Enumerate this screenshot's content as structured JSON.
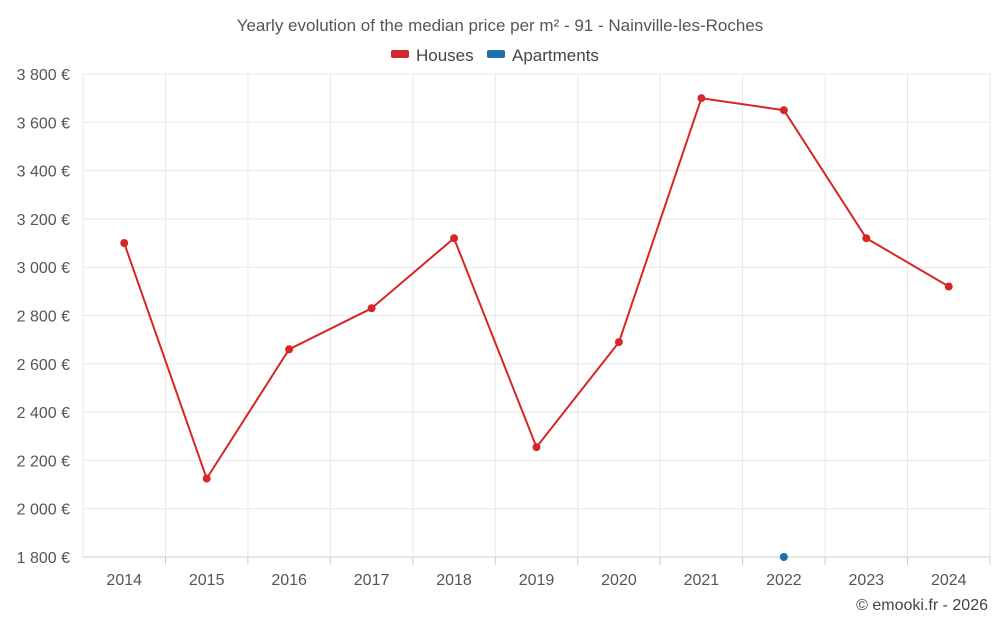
{
  "chart_data": {
    "type": "line",
    "title": "Yearly evolution of the median price per m² - 91 - Nainville-les-Roches",
    "xlabel": "",
    "ylabel": "",
    "categories": [
      "2014",
      "2015",
      "2016",
      "2017",
      "2018",
      "2019",
      "2020",
      "2021",
      "2022",
      "2023",
      "2024"
    ],
    "ylim": [
      1800,
      3800
    ],
    "yticks": [
      1800,
      2000,
      2200,
      2400,
      2600,
      2800,
      3000,
      3200,
      3400,
      3600,
      3800
    ],
    "ytick_labels": [
      "1 800 €",
      "2 000 €",
      "2 200 €",
      "2 400 €",
      "2 600 €",
      "2 800 €",
      "3 000 €",
      "3 200 €",
      "3 400 €",
      "3 600 €",
      "3 800 €"
    ],
    "grid": true,
    "legend_position": "top-center",
    "series": [
      {
        "name": "Houses",
        "color": "#d62728",
        "values": [
          3100,
          2125,
          2660,
          2830,
          3120,
          2255,
          2690,
          3700,
          3650,
          3120,
          2920
        ]
      },
      {
        "name": "Apartments",
        "color": "#1f6fa8",
        "values": [
          null,
          null,
          null,
          null,
          null,
          null,
          null,
          null,
          1800,
          null,
          null
        ]
      }
    ]
  },
  "credit": "© emooki.fr - 2026"
}
